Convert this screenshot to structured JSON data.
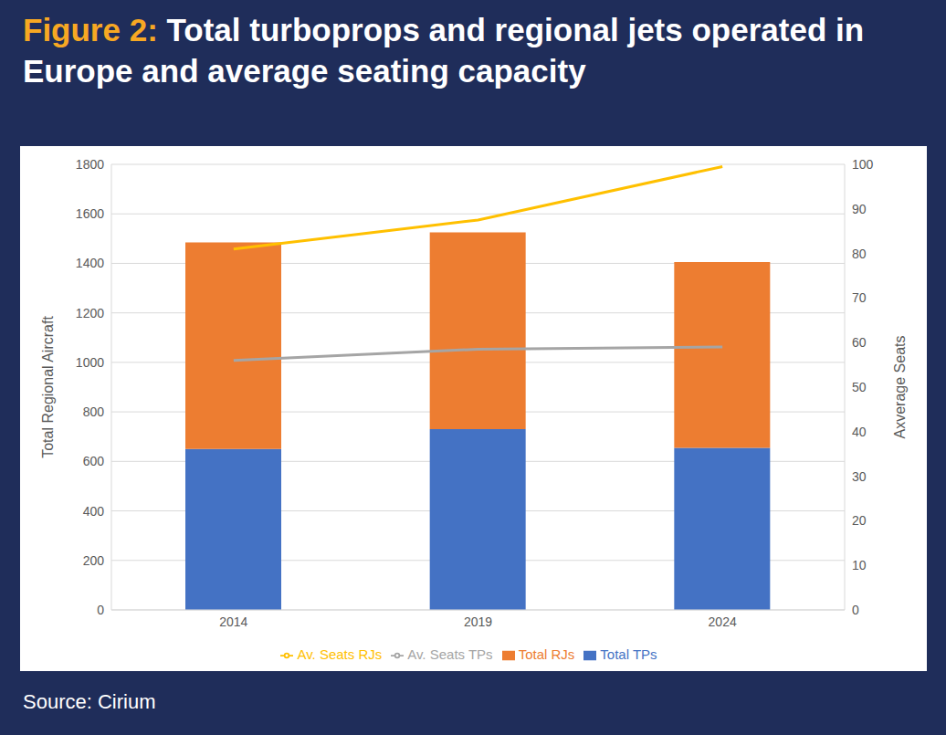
{
  "chart_data": {
    "type": "bar",
    "title": "Figure 2: Total turboprops and regional jets operated in Europe and average seating capacity",
    "source": "Source: Cirium",
    "categories": [
      "2014",
      "2019",
      "2024"
    ],
    "stacked": true,
    "grid": true,
    "legend": "bottom",
    "y_label": "Total Regional Aircraft",
    "y2_label": "Axverage Seats",
    "ylim": [
      0,
      1800
    ],
    "yticks": [
      0,
      200,
      400,
      600,
      800,
      1000,
      1200,
      1400,
      1600,
      1800
    ],
    "y2lim": [
      0,
      100
    ],
    "y2ticks": [
      0,
      10,
      20,
      30,
      40,
      50,
      60,
      70,
      80,
      90,
      100
    ],
    "series": [
      {
        "name": "Total TPs",
        "type": "bar",
        "color": "#4472c4",
        "values": [
          650,
          730,
          655
        ]
      },
      {
        "name": "Total RJs",
        "type": "bar",
        "color": "#ed7d31",
        "values": [
          835,
          795,
          750
        ]
      },
      {
        "name": "Av. Seats TPs",
        "type": "line",
        "axis": "y2",
        "color": "#a5a5a5",
        "values": [
          56,
          58.5,
          59
        ]
      },
      {
        "name": "Av. Seats RJs",
        "type": "line",
        "axis": "y2",
        "color": "#ffc000",
        "values": [
          81,
          87.5,
          99.5
        ]
      }
    ]
  }
}
